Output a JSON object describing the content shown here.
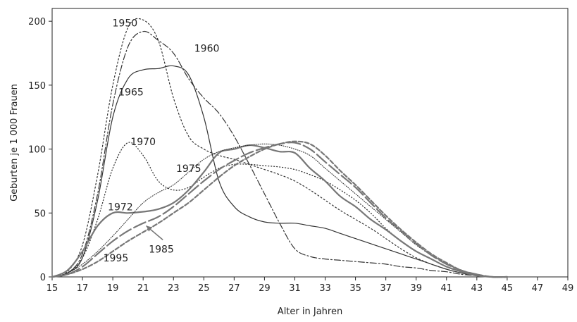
{
  "chart_data": {
    "type": "line",
    "title": "",
    "xlabel": "Alter in Jahren",
    "ylabel": "Geburten je 1 000 Frauen",
    "xlim": [
      15,
      49
    ],
    "ylim": [
      0,
      210
    ],
    "xticks": [
      15,
      17,
      19,
      21,
      23,
      25,
      27,
      29,
      31,
      33,
      35,
      37,
      39,
      41,
      43,
      45,
      47,
      49
    ],
    "yticks": [
      0,
      50,
      100,
      150,
      200
    ],
    "grid": false,
    "legend": "none",
    "series": [
      {
        "name": "1950",
        "dash": "2,3",
        "color": "#333333",
        "stroke_width": 1.2,
        "label_at": [
          19.8,
          196
        ],
        "x": [
          15,
          16,
          17,
          18,
          19,
          20,
          21,
          22,
          23,
          24,
          25,
          26,
          27,
          28,
          29,
          30,
          31,
          32,
          33,
          34,
          35,
          36,
          37,
          38,
          39,
          40,
          41,
          42,
          43,
          44,
          45
        ],
        "y": [
          0,
          4,
          25,
          80,
          150,
          195,
          201,
          185,
          140,
          110,
          100,
          95,
          92,
          88,
          84,
          80,
          75,
          68,
          60,
          52,
          45,
          38,
          30,
          22,
          15,
          10,
          6,
          3,
          1,
          0,
          0
        ]
      },
      {
        "name": "1960",
        "dash": "9,3,2,3",
        "color": "#333333",
        "stroke_width": 1.2,
        "label_at": [
          25.2,
          176
        ],
        "x": [
          15,
          16,
          17,
          18,
          19,
          20,
          21,
          22,
          23,
          24,
          25,
          26,
          27,
          28,
          29,
          30,
          31,
          32,
          33,
          34,
          35,
          36,
          37,
          38,
          39,
          40,
          41,
          42,
          43,
          44,
          45
        ],
        "y": [
          0,
          3,
          18,
          65,
          135,
          180,
          192,
          185,
          175,
          155,
          140,
          128,
          110,
          88,
          65,
          42,
          22,
          16,
          14,
          13,
          12,
          11,
          10,
          8,
          7,
          5,
          4,
          2,
          1,
          0,
          0
        ]
      },
      {
        "name": "1965",
        "dash": "",
        "color": "#333333",
        "stroke_width": 1.2,
        "label_at": [
          20.2,
          142
        ],
        "x": [
          15,
          16,
          17,
          18,
          19,
          20,
          21,
          22,
          23,
          24,
          25,
          26,
          27,
          28,
          29,
          30,
          31,
          32,
          33,
          34,
          35,
          36,
          37,
          38,
          39,
          40,
          41,
          42,
          43,
          44,
          45
        ],
        "y": [
          0,
          3,
          15,
          60,
          125,
          155,
          162,
          163,
          165,
          158,
          125,
          75,
          55,
          47,
          43,
          42,
          42,
          40,
          38,
          34,
          30,
          26,
          22,
          18,
          14,
          10,
          6,
          3,
          1,
          0,
          0
        ]
      },
      {
        "name": "1970",
        "dash": "1,3",
        "color": "#333333",
        "stroke_width": 1.3,
        "label_at": [
          21.0,
          103
        ],
        "x": [
          15,
          16,
          17,
          18,
          19,
          20,
          21,
          22,
          23,
          24,
          25,
          26,
          27,
          28,
          29,
          30,
          31,
          32,
          33,
          34,
          35,
          36,
          37,
          38,
          39,
          40,
          41,
          42,
          43,
          44,
          45
        ],
        "y": [
          0,
          3,
          15,
          45,
          85,
          105,
          95,
          75,
          68,
          70,
          78,
          85,
          88,
          88,
          87,
          86,
          84,
          80,
          75,
          68,
          60,
          50,
          38,
          28,
          20,
          14,
          8,
          4,
          1,
          0,
          0
        ]
      },
      {
        "name": "1972",
        "dash": "",
        "color": "#777777",
        "stroke_width": 2.2,
        "label_at": [
          19.5,
          52
        ],
        "x": [
          15,
          16,
          17,
          18,
          19,
          20,
          21,
          22,
          23,
          24,
          25,
          26,
          27,
          28,
          29,
          30,
          31,
          32,
          33,
          34,
          35,
          36,
          37,
          38,
          39,
          40,
          41,
          42,
          43,
          44,
          45
        ],
        "y": [
          0,
          5,
          20,
          40,
          50,
          50,
          51,
          53,
          58,
          68,
          82,
          97,
          100,
          103,
          101,
          98,
          97,
          85,
          75,
          63,
          55,
          45,
          37,
          28,
          20,
          14,
          8,
          4,
          1,
          0,
          0
        ]
      },
      {
        "name": "1975",
        "dash": "1,2",
        "color": "#333333",
        "stroke_width": 1.1,
        "label_at": [
          24.0,
          82
        ],
        "x": [
          15,
          16,
          17,
          18,
          19,
          20,
          21,
          22,
          23,
          24,
          25,
          26,
          27,
          28,
          29,
          30,
          31,
          32,
          33,
          34,
          35,
          36,
          37,
          38,
          39,
          40,
          41,
          42,
          43,
          44,
          45
        ],
        "y": [
          0,
          3,
          10,
          20,
          32,
          45,
          58,
          66,
          72,
          82,
          92,
          98,
          101,
          103,
          104,
          103,
          100,
          95,
          85,
          75,
          65,
          55,
          45,
          35,
          25,
          17,
          10,
          5,
          2,
          0,
          0
        ]
      },
      {
        "name": "1985",
        "dash": "18,5",
        "color": "#777777",
        "stroke_width": 2.2,
        "label_at": [
          22.2,
          19
        ],
        "x": [
          15,
          16,
          17,
          18,
          19,
          20,
          21,
          22,
          23,
          24,
          25,
          26,
          27,
          28,
          29,
          30,
          31,
          32,
          33,
          34,
          35,
          36,
          37,
          38,
          39,
          40,
          41,
          42,
          43,
          44,
          45
        ],
        "y": [
          0,
          2,
          8,
          18,
          28,
          36,
          42,
          47,
          55,
          65,
          75,
          84,
          91,
          97,
          101,
          104,
          105,
          100,
          90,
          80,
          70,
          58,
          46,
          36,
          26,
          17,
          10,
          5,
          2,
          0,
          0
        ]
      },
      {
        "name": "1995",
        "dash": "6,3",
        "color": "#777777",
        "stroke_width": 2.2,
        "label_at": [
          19.2,
          12
        ],
        "x": [
          15,
          16,
          17,
          18,
          19,
          20,
          21,
          22,
          23,
          24,
          25,
          26,
          27,
          28,
          29,
          30,
          31,
          32,
          33,
          34,
          35,
          36,
          37,
          38,
          39,
          40,
          41,
          42,
          43,
          44,
          45
        ],
        "y": [
          0,
          2,
          6,
          12,
          20,
          28,
          35,
          42,
          50,
          58,
          68,
          78,
          87,
          94,
          100,
          104,
          106,
          104,
          95,
          83,
          72,
          60,
          48,
          37,
          27,
          18,
          11,
          5,
          2,
          0,
          0
        ]
      }
    ],
    "annotations": [
      {
        "type": "arrow",
        "from": [
          22.3,
          29
        ],
        "to": [
          21.2,
          40
        ],
        "color": "#777777"
      }
    ]
  }
}
